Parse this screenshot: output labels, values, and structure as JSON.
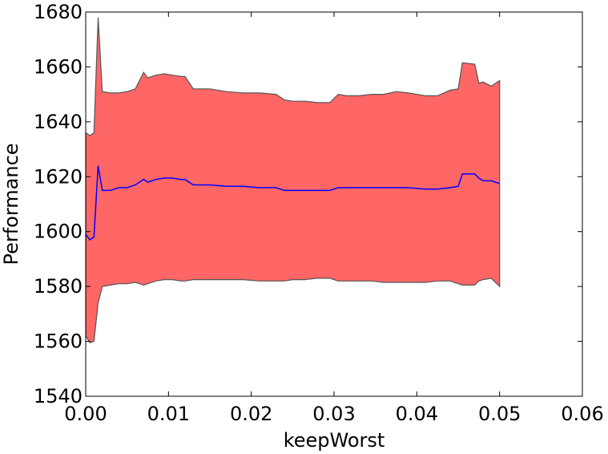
{
  "chart_data": {
    "type": "line",
    "xlabel": "keepWorst",
    "ylabel": "Performance",
    "xlim": [
      0.0,
      0.06
    ],
    "ylim": [
      1540,
      1680
    ],
    "xticks": [
      0.0,
      0.01,
      0.02,
      0.03,
      0.04,
      0.05,
      0.06
    ],
    "xtick_labels": [
      "0.00",
      "0.01",
      "0.02",
      "0.03",
      "0.04",
      "0.05",
      "0.06"
    ],
    "yticks": [
      1540,
      1560,
      1580,
      1600,
      1620,
      1640,
      1660,
      1680
    ],
    "ytick_labels": [
      "1540",
      "1560",
      "1580",
      "1600",
      "1620",
      "1640",
      "1660",
      "1680"
    ],
    "grid": false,
    "x": [
      0.0,
      0.0005,
      0.001,
      0.0015,
      0.002,
      0.003,
      0.004,
      0.005,
      0.006,
      0.007,
      0.0075,
      0.0085,
      0.0095,
      0.0105,
      0.0115,
      0.012,
      0.013,
      0.015,
      0.017,
      0.019,
      0.021,
      0.023,
      0.024,
      0.025,
      0.0265,
      0.028,
      0.0295,
      0.0305,
      0.0315,
      0.033,
      0.0345,
      0.036,
      0.0375,
      0.039,
      0.041,
      0.0425,
      0.044,
      0.045,
      0.0455,
      0.047,
      0.0475,
      0.048,
      0.049,
      0.05
    ],
    "mean": [
      1599,
      1597,
      1598,
      1624,
      1615,
      1615,
      1616,
      1616,
      1617,
      1619,
      1618,
      1619,
      1619.5,
      1619.5,
      1619,
      1619,
      1617,
      1617,
      1616.5,
      1616.5,
      1616,
      1616,
      1615,
      1615,
      1615,
      1615,
      1615,
      1616,
      1616,
      1616,
      1616,
      1616,
      1616,
      1616,
      1615.5,
      1615.5,
      1616,
      1616.5,
      1621,
      1621,
      1619.5,
      1618.5,
      1618.5,
      1617.5
    ],
    "upper": [
      1636,
      1635,
      1636,
      1678,
      1651,
      1650.5,
      1650.5,
      1651,
      1652,
      1658,
      1656,
      1657,
      1657.5,
      1657,
      1656.5,
      1656.5,
      1652,
      1652,
      1651,
      1650.5,
      1650.5,
      1650,
      1648,
      1647.5,
      1647.5,
      1647,
      1647,
      1650,
      1649.5,
      1649.5,
      1650,
      1650,
      1651,
      1650.5,
      1649.5,
      1649.5,
      1651.5,
      1652,
      1661.5,
      1661,
      1654,
      1654.5,
      1653,
      1655
    ],
    "lower": [
      1562,
      1559.5,
      1560,
      1574,
      1580,
      1580.5,
      1581,
      1581,
      1581.5,
      1580.5,
      1581,
      1582,
      1582.5,
      1582.5,
      1582,
      1582,
      1582.5,
      1582.5,
      1582.5,
      1582.5,
      1582,
      1582,
      1582,
      1582.5,
      1582.5,
      1583,
      1583,
      1582,
      1582,
      1582,
      1582,
      1581.5,
      1581.5,
      1581.5,
      1581.5,
      1582,
      1582,
      1581,
      1580.5,
      1580.5,
      1582,
      1582.5,
      1583,
      1580
    ],
    "band_color": "#ff6666",
    "band_edge_color": "#555555",
    "line_color": "#0000ff"
  }
}
